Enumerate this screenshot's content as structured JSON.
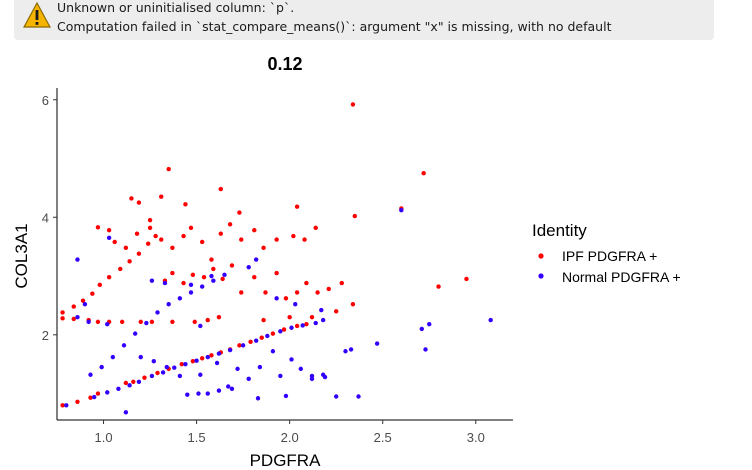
{
  "warning": {
    "line1": "Unknown or uninitialised column: `p`.",
    "line2": "Computation failed in `stat_compare_means()`: argument \"x\" is missing, with no default",
    "icon": "warning-triangle-icon",
    "icon_color": "#f4b400"
  },
  "colors": {
    "ipf": "#ff0000",
    "normal": "#3300ff"
  },
  "chart_data": {
    "type": "scatter",
    "title": "0.12",
    "xlabel": "PDGFRA",
    "ylabel": "COL3A1",
    "xlim": [
      0.75,
      3.2
    ],
    "ylim": [
      0.55,
      6.2
    ],
    "xticks": [
      1.0,
      1.5,
      2.0,
      2.5,
      3.0
    ],
    "xtick_labels": [
      "1.0",
      "1.5",
      "2.0",
      "2.5",
      "3.0"
    ],
    "yticks": [
      2,
      4,
      6
    ],
    "ytick_labels": [
      "2",
      "4",
      "6"
    ],
    "grid": false,
    "legend_position": "right",
    "legend_title": "Identity",
    "series": [
      {
        "name": "IPF PDGFRA +",
        "color": "#ff0000",
        "points": [
          [
            0.78,
            0.8
          ],
          [
            0.86,
            0.86
          ],
          [
            0.93,
            0.93
          ],
          [
            0.97,
            1.0
          ],
          [
            1.12,
            1.18
          ],
          [
            1.16,
            1.2
          ],
          [
            1.22,
            1.27
          ],
          [
            1.29,
            1.35
          ],
          [
            1.35,
            1.42
          ],
          [
            1.42,
            1.5
          ],
          [
            1.48,
            1.55
          ],
          [
            1.53,
            1.6
          ],
          [
            1.58,
            1.65
          ],
          [
            1.63,
            1.7
          ],
          [
            1.68,
            1.75
          ],
          [
            1.73,
            1.82
          ],
          [
            1.79,
            1.88
          ],
          [
            1.85,
            1.95
          ],
          [
            1.91,
            2.02
          ],
          [
            1.97,
            2.09
          ],
          [
            2.04,
            2.15
          ],
          [
            2.09,
            2.18
          ],
          [
            0.78,
            2.28
          ],
          [
            0.84,
            2.27
          ],
          [
            0.92,
            2.25
          ],
          [
            0.97,
            2.22
          ],
          [
            1.03,
            2.22
          ],
          [
            1.1,
            2.22
          ],
          [
            1.2,
            2.22
          ],
          [
            1.26,
            2.22
          ],
          [
            1.37,
            2.22
          ],
          [
            1.49,
            2.22
          ],
          [
            1.56,
            2.25
          ],
          [
            1.62,
            2.3
          ],
          [
            1.86,
            2.25
          ],
          [
            2.0,
            2.3
          ],
          [
            2.12,
            2.3
          ],
          [
            2.25,
            2.4
          ],
          [
            0.78,
            2.38
          ],
          [
            0.84,
            2.48
          ],
          [
            0.89,
            2.58
          ],
          [
            0.94,
            2.7
          ],
          [
            0.98,
            2.85
          ],
          [
            1.03,
            2.98
          ],
          [
            1.09,
            3.12
          ],
          [
            1.14,
            3.25
          ],
          [
            1.19,
            3.38
          ],
          [
            1.24,
            3.55
          ],
          [
            1.28,
            3.68
          ],
          [
            1.33,
            2.92
          ],
          [
            1.37,
            3.05
          ],
          [
            1.43,
            2.88
          ],
          [
            1.48,
            3.02
          ],
          [
            1.54,
            2.98
          ],
          [
            1.59,
            3.12
          ],
          [
            1.64,
            2.95
          ],
          [
            1.69,
            3.18
          ],
          [
            1.74,
            2.72
          ],
          [
            1.81,
            2.98
          ],
          [
            1.87,
            2.72
          ],
          [
            1.93,
            3.05
          ],
          [
            1.98,
            2.62
          ],
          [
            2.04,
            2.72
          ],
          [
            2.09,
            2.88
          ],
          [
            2.15,
            2.72
          ],
          [
            2.21,
            2.78
          ],
          [
            2.28,
            2.88
          ],
          [
            2.34,
            2.52
          ],
          [
            0.97,
            3.83
          ],
          [
            1.03,
            3.78
          ],
          [
            1.06,
            3.58
          ],
          [
            1.12,
            3.48
          ],
          [
            1.18,
            3.72
          ],
          [
            1.25,
            3.82
          ],
          [
            1.31,
            3.62
          ],
          [
            1.37,
            3.48
          ],
          [
            1.43,
            3.68
          ],
          [
            1.47,
            3.82
          ],
          [
            1.53,
            3.58
          ],
          [
            1.58,
            3.28
          ],
          [
            1.63,
            3.72
          ],
          [
            1.68,
            3.88
          ],
          [
            1.74,
            3.62
          ],
          [
            1.81,
            3.78
          ],
          [
            1.86,
            3.48
          ],
          [
            1.93,
            3.62
          ],
          [
            2.02,
            3.68
          ],
          [
            2.08,
            3.62
          ],
          [
            2.14,
            3.82
          ],
          [
            1.15,
            4.32
          ],
          [
            1.19,
            4.25
          ],
          [
            1.25,
            3.95
          ],
          [
            1.31,
            4.35
          ],
          [
            1.44,
            4.22
          ],
          [
            1.63,
            4.48
          ],
          [
            1.73,
            4.08
          ],
          [
            2.04,
            4.18
          ],
          [
            2.35,
            4.02
          ],
          [
            1.35,
            4.82
          ],
          [
            2.34,
            5.92
          ],
          [
            2.6,
            4.15
          ],
          [
            2.72,
            4.75
          ],
          [
            2.8,
            2.82
          ],
          [
            2.95,
            2.95
          ]
        ]
      },
      {
        "name": "Normal PDGFRA +",
        "color": "#3300ff",
        "points": [
          [
            0.8,
            0.8
          ],
          [
            0.95,
            0.94
          ],
          [
            1.02,
            1.02
          ],
          [
            1.08,
            1.08
          ],
          [
            1.14,
            1.14
          ],
          [
            1.19,
            1.2
          ],
          [
            1.26,
            1.3
          ],
          [
            1.32,
            1.36
          ],
          [
            1.38,
            1.44
          ],
          [
            1.44,
            1.5
          ],
          [
            1.5,
            1.56
          ],
          [
            1.56,
            1.62
          ],
          [
            1.62,
            1.68
          ],
          [
            1.68,
            1.74
          ],
          [
            1.75,
            1.82
          ],
          [
            1.82,
            1.9
          ],
          [
            1.88,
            1.98
          ],
          [
            1.95,
            2.06
          ],
          [
            2.01,
            2.12
          ],
          [
            2.07,
            2.16
          ],
          [
            2.14,
            2.2
          ],
          [
            2.18,
            2.25
          ],
          [
            0.93,
            1.32
          ],
          [
            0.99,
            1.45
          ],
          [
            1.05,
            1.62
          ],
          [
            1.11,
            1.82
          ],
          [
            1.17,
            2.02
          ],
          [
            1.23,
            2.2
          ],
          [
            1.29,
            2.38
          ],
          [
            1.35,
            2.52
          ],
          [
            1.41,
            2.62
          ],
          [
            1.47,
            2.72
          ],
          [
            1.53,
            2.82
          ],
          [
            1.59,
            2.92
          ],
          [
            1.65,
            3.02
          ],
          [
            0.86,
            2.3
          ],
          [
            0.92,
            2.22
          ],
          [
            1.02,
            2.18
          ],
          [
            1.2,
            1.62
          ],
          [
            1.27,
            1.55
          ],
          [
            1.34,
            1.45
          ],
          [
            1.41,
            1.3
          ],
          [
            1.52,
            1.32
          ],
          [
            1.61,
            1.52
          ],
          [
            1.67,
            1.12
          ],
          [
            1.72,
            1.42
          ],
          [
            1.78,
            1.25
          ],
          [
            1.84,
            1.45
          ],
          [
            1.91,
            1.72
          ],
          [
            1.95,
            1.3
          ],
          [
            2.01,
            1.58
          ],
          [
            2.06,
            1.42
          ],
          [
            2.12,
            1.3
          ],
          [
            2.18,
            1.32
          ],
          [
            2.25,
            0.95
          ],
          [
            2.3,
            1.72
          ],
          [
            2.33,
            1.75
          ],
          [
            2.37,
            0.95
          ],
          [
            1.45,
            0.98
          ],
          [
            1.51,
            1.0
          ],
          [
            1.56,
            1.0
          ],
          [
            1.62,
            1.05
          ],
          [
            1.69,
            1.08
          ],
          [
            1.83,
            0.92
          ],
          [
            1.98,
            0.96
          ],
          [
            2.12,
            1.25
          ],
          [
            2.19,
            1.28
          ],
          [
            0.86,
            3.28
          ],
          [
            0.9,
            2.52
          ],
          [
            1.03,
            3.65
          ],
          [
            1.12,
            0.68
          ],
          [
            1.26,
            2.92
          ],
          [
            1.33,
            2.88
          ],
          [
            1.47,
            2.85
          ],
          [
            1.52,
            2.15
          ],
          [
            1.58,
            3.0
          ],
          [
            1.78,
            3.15
          ],
          [
            1.82,
            3.28
          ],
          [
            1.93,
            2.62
          ],
          [
            2.03,
            2.52
          ],
          [
            2.17,
            2.42
          ],
          [
            2.47,
            1.85
          ],
          [
            2.71,
            2.1
          ],
          [
            2.73,
            1.75
          ],
          [
            2.75,
            2.18
          ],
          [
            2.6,
            4.12
          ],
          [
            3.08,
            2.25
          ]
        ]
      }
    ]
  }
}
